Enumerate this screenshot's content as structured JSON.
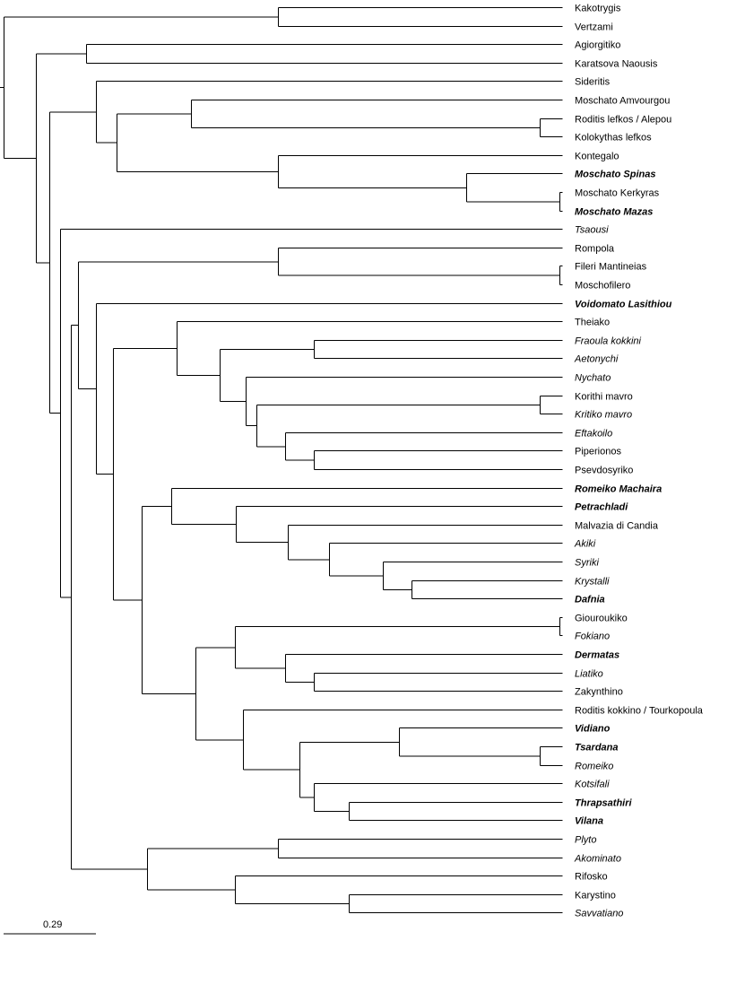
{
  "tree": {
    "scale_bar_label": "0.29",
    "leaves": [
      {
        "label": "Kakotrygis",
        "style": "normal"
      },
      {
        "label": "Vertzami",
        "style": "normal"
      },
      {
        "label": "Agiorgitiko",
        "style": "normal"
      },
      {
        "label": "Karatsova Naousis",
        "style": "normal"
      },
      {
        "label": "Sideritis",
        "style": "normal"
      },
      {
        "label": "Moschato Amvourgou",
        "style": "normal"
      },
      {
        "label": "Roditis lefkos / Alepou",
        "style": "normal"
      },
      {
        "label": "Kolokythas lefkos",
        "style": "normal"
      },
      {
        "label": "Kontegalo",
        "style": "normal"
      },
      {
        "label": "Moschato Spinas",
        "style": "bold-italic"
      },
      {
        "label": "Moschato Kerkyras",
        "style": "normal"
      },
      {
        "label": "Moschato Mazas",
        "style": "bold-italic"
      },
      {
        "label": "Tsaousi",
        "style": "italic"
      },
      {
        "label": "Rompola",
        "style": "normal"
      },
      {
        "label": "Fileri Mantineias",
        "style": "normal"
      },
      {
        "label": "Moschofilero",
        "style": "normal"
      },
      {
        "label": "Voidomato Lasithiou",
        "style": "bold-italic"
      },
      {
        "label": "Theiako",
        "style": "normal"
      },
      {
        "label": "Fraoula kokkini",
        "style": "italic"
      },
      {
        "label": "Aetonychi",
        "style": "italic"
      },
      {
        "label": "Nychato",
        "style": "italic"
      },
      {
        "label": "Korithi mavro",
        "style": "normal"
      },
      {
        "label": "Kritiko mavro",
        "style": "italic"
      },
      {
        "label": "Eftakoilo",
        "style": "italic"
      },
      {
        "label": "Piperionos",
        "style": "normal"
      },
      {
        "label": "Psevdosyriko",
        "style": "normal"
      },
      {
        "label": "Romeiko Machaira",
        "style": "bold-italic"
      },
      {
        "label": "Petrachladi",
        "style": "bold-italic"
      },
      {
        "label": "Malvazia di Candia",
        "style": "normal"
      },
      {
        "label": "Akiki",
        "style": "italic"
      },
      {
        "label": "Syriki",
        "style": "italic"
      },
      {
        "label": "Krystalli",
        "style": "italic"
      },
      {
        "label": "Dafnia",
        "style": "bold-italic"
      },
      {
        "label": "Giouroukiko",
        "style": "normal"
      },
      {
        "label": "Fokiano",
        "style": "italic"
      },
      {
        "label": "Dermatas",
        "style": "bold-italic"
      },
      {
        "label": "Liatiko",
        "style": "italic"
      },
      {
        "label": "Zakynthino",
        "style": "normal"
      },
      {
        "label": "Roditis kokkino / Tourkopoula",
        "style": "normal"
      },
      {
        "label": "Vidiano",
        "style": "bold-italic"
      },
      {
        "label": "Tsardana",
        "style": "bold-italic"
      },
      {
        "label": "Romeiko",
        "style": "italic"
      },
      {
        "label": "Kotsifali",
        "style": "italic"
      },
      {
        "label": "Thrapsathiri",
        "style": "bold-italic"
      },
      {
        "label": "Vilana",
        "style": "bold-italic"
      },
      {
        "label": "Plyto",
        "style": "italic"
      },
      {
        "label": "Akominato",
        "style": "italic"
      },
      {
        "label": "Rifosko",
        "style": "normal"
      },
      {
        "label": "Karystino",
        "style": "normal"
      },
      {
        "label": "Savvatiano",
        "style": "italic"
      }
    ]
  }
}
